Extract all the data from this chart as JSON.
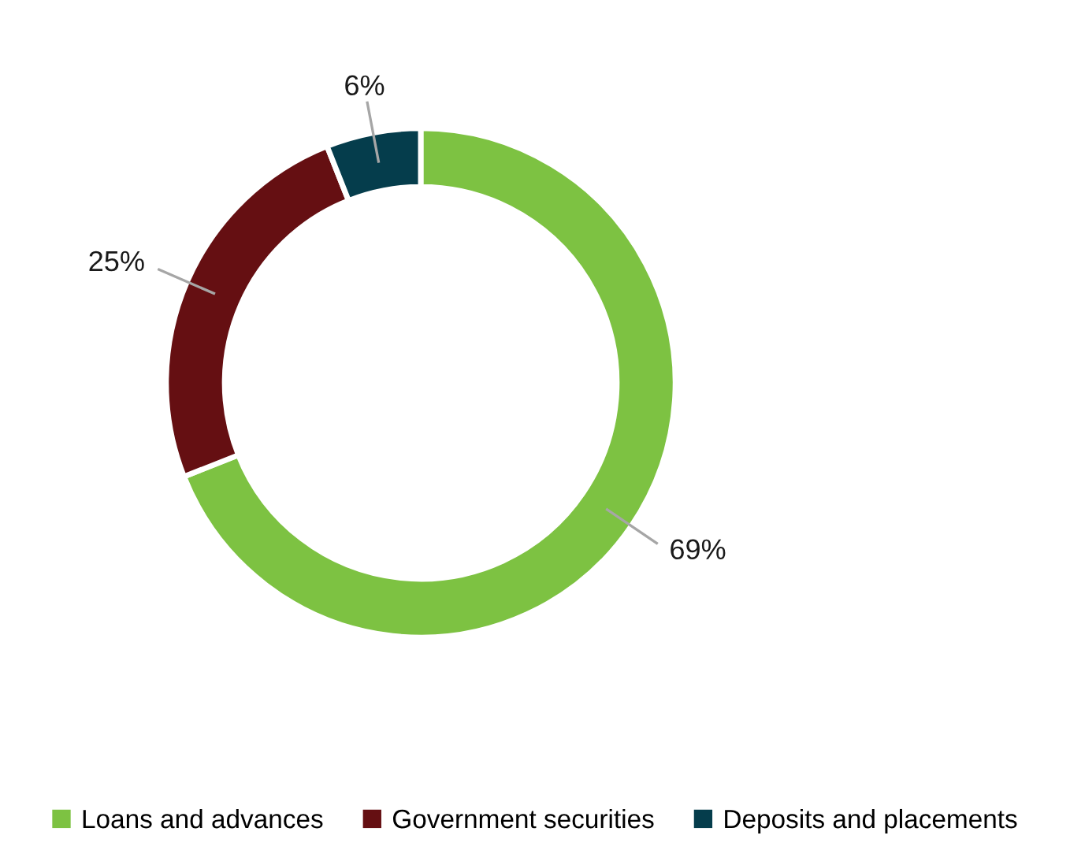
{
  "chart_data": {
    "type": "donut",
    "categories": [
      "Loans and advances",
      "Government securities",
      "Deposits and placements"
    ],
    "values": [
      69,
      25,
      6
    ],
    "colors": [
      "#7dc242",
      "#650f12",
      "#053d4c"
    ],
    "value_labels": [
      "69%",
      "25%",
      "6%"
    ],
    "legend": "bottom"
  }
}
